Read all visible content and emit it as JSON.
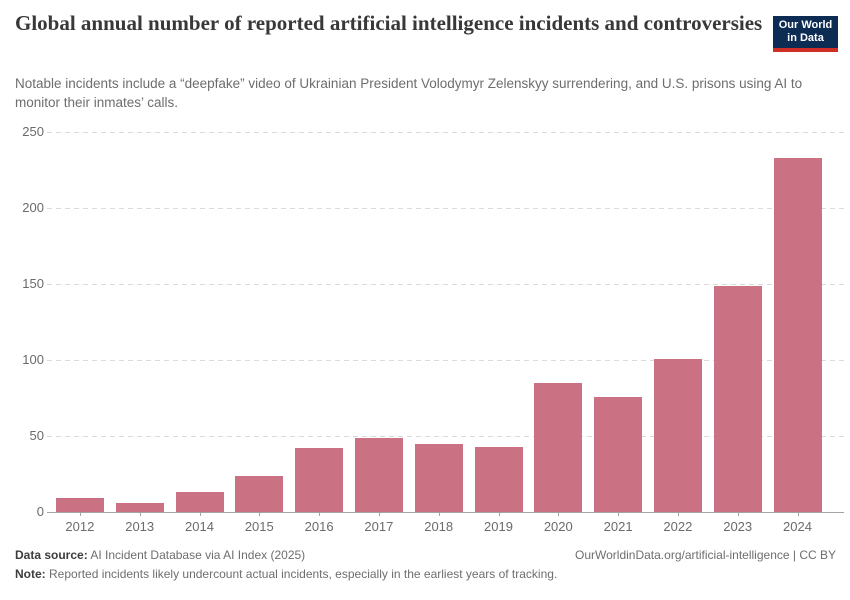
{
  "header": {
    "title": "Global annual number of reported artificial intelligence incidents and controversies",
    "subtitle": "Notable incidents include a “deepfake” video of Ukrainian President Volodymyr Zelenskyy surrendering, and U.S. prisons using AI to monitor their inmates’ calls.",
    "logo": {
      "line1": "Our World",
      "line2": "in Data"
    }
  },
  "chart_data": {
    "type": "bar",
    "title": "Global annual number of reported artificial intelligence incidents and controversies",
    "categories": [
      "2012",
      "2013",
      "2014",
      "2015",
      "2016",
      "2017",
      "2018",
      "2019",
      "2020",
      "2021",
      "2022",
      "2023",
      "2024"
    ],
    "values": [
      9,
      6,
      13,
      24,
      42,
      49,
      45,
      43,
      85,
      76,
      101,
      149,
      233
    ],
    "xlabel": "",
    "ylabel": "",
    "ylim": [
      0,
      250
    ],
    "yticks": [
      0,
      50,
      100,
      150,
      200,
      250
    ],
    "grid": "horizontal-dashed",
    "legend": "none",
    "bar_color": "#ca7184"
  },
  "footer": {
    "source_label": "Data source:",
    "source_text": " AI Incident Database via AI Index (2025)",
    "attribution": "OurWorldinData.org/artificial-intelligence | CC BY",
    "note_label": "Note:",
    "note_text": " Reported incidents likely undercount actual incidents, especially in the earliest years of tracking."
  },
  "colors": {
    "accent_bar": "#ca7184",
    "gridline": "#dadada",
    "axis": "#a3a3a3",
    "tick_label": "#6b6b6b",
    "title_text": "#383838",
    "subtitle_text": "#6d6d6d",
    "logo_bg": "#0d2c54",
    "logo_underline": "#cf2e27"
  }
}
